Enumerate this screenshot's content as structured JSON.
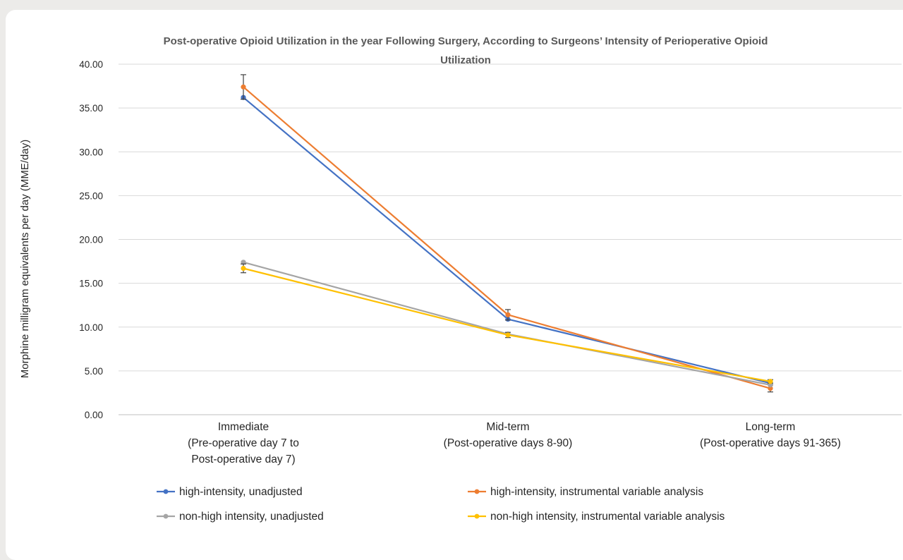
{
  "chart_data": {
    "type": "line",
    "title": "Post-operative Opioid Utilization in the year Following Surgery, According to Surgeons’ Intensity of Perioperative Opioid Utilization",
    "title_lines": [
      "Post-operative Opioid Utilization in the year Following Surgery, According to Surgeons’ Intensity of Perioperative Opioid",
      "Utilization"
    ],
    "ylabel": "Morphine milligram equivalents per day (MME/day)",
    "xlabel": "",
    "ylim": [
      0,
      40
    ],
    "yticks": [
      "0.00",
      "5.00",
      "10.00",
      "15.00",
      "20.00",
      "25.00",
      "30.00",
      "35.00",
      "40.00"
    ],
    "categories": [
      "Immediate (Pre-operative day 7 to Post-operative day 7)",
      "Mid-term (Post-operative days 8-90)",
      "Long-term (Post-operative days 91-365)"
    ],
    "category_lines": [
      [
        "Immediate",
        "(Pre-operative day 7 to",
        "Post-operative day 7)"
      ],
      [
        "Mid-term",
        "(Post-operative days 8-90)"
      ],
      [
        "Long-term",
        "(Post-operative days 91-365)"
      ]
    ],
    "grid": true,
    "legend_position": "bottom",
    "series": [
      {
        "name": "high-intensity, unadjusted",
        "color": "#4472c4",
        "values": [
          36.2,
          10.9,
          3.6
        ],
        "errors": [
          0,
          0,
          0
        ]
      },
      {
        "name": "high-intensity, instrumental variable analysis",
        "color": "#ed7d31",
        "values": [
          37.4,
          11.4,
          3.0
        ],
        "errors": [
          1.4,
          0.6,
          0.4
        ]
      },
      {
        "name": "non-high intensity, unadjusted",
        "color": "#a5a5a5",
        "values": [
          17.4,
          9.2,
          3.4
        ],
        "errors": [
          0,
          0,
          0
        ]
      },
      {
        "name": "non-high intensity, instrumental variable analysis",
        "color": "#ffc000",
        "values": [
          16.7,
          9.1,
          3.8
        ],
        "errors": [
          0.5,
          0.3,
          0.2
        ]
      }
    ]
  }
}
